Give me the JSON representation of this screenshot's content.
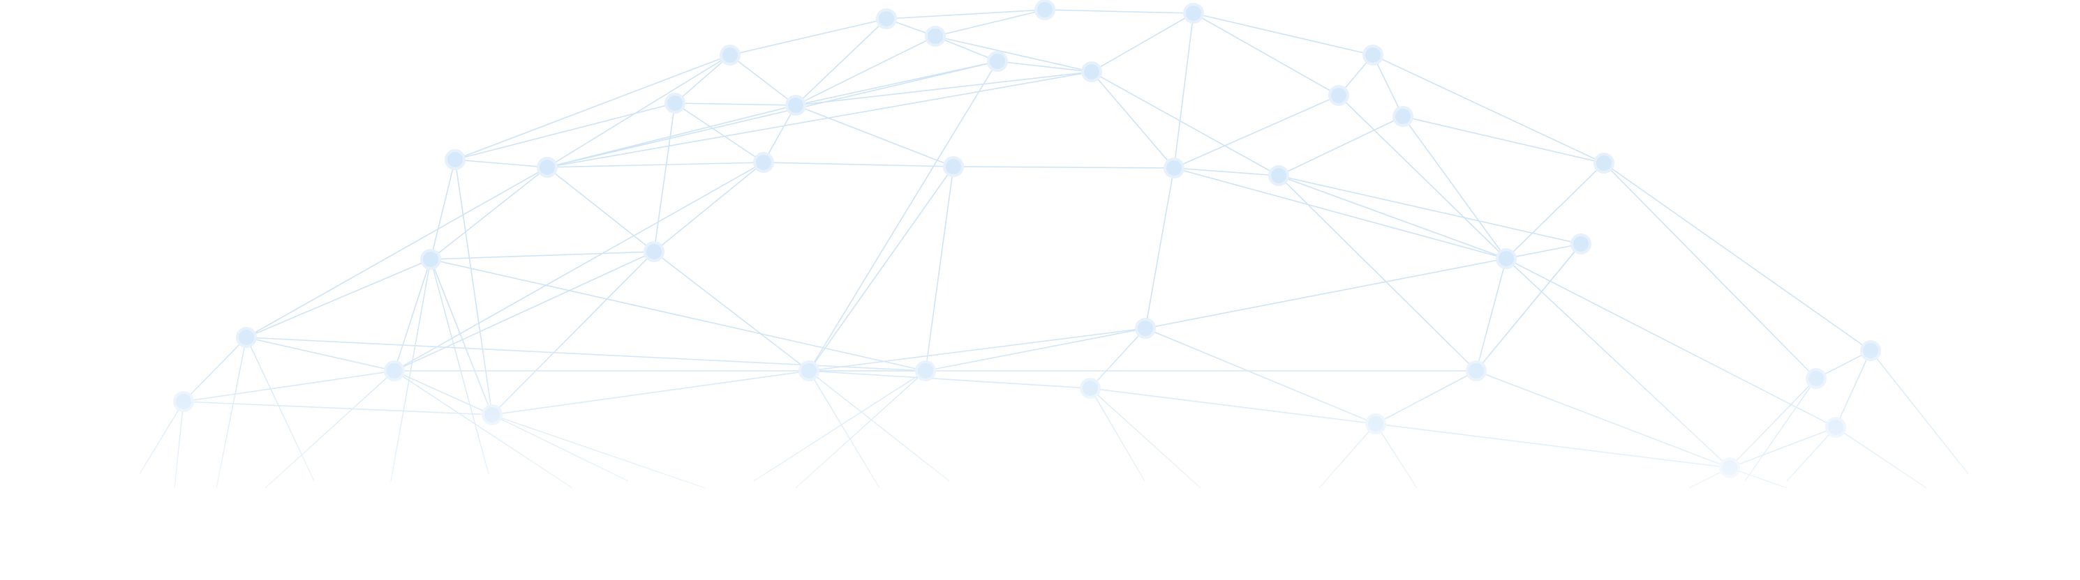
{
  "background_color": "#ffffff",
  "line_color": "#cfe4f6",
  "node_fill": "#d6e9fb",
  "node_stroke": "#e6f1fc"
}
